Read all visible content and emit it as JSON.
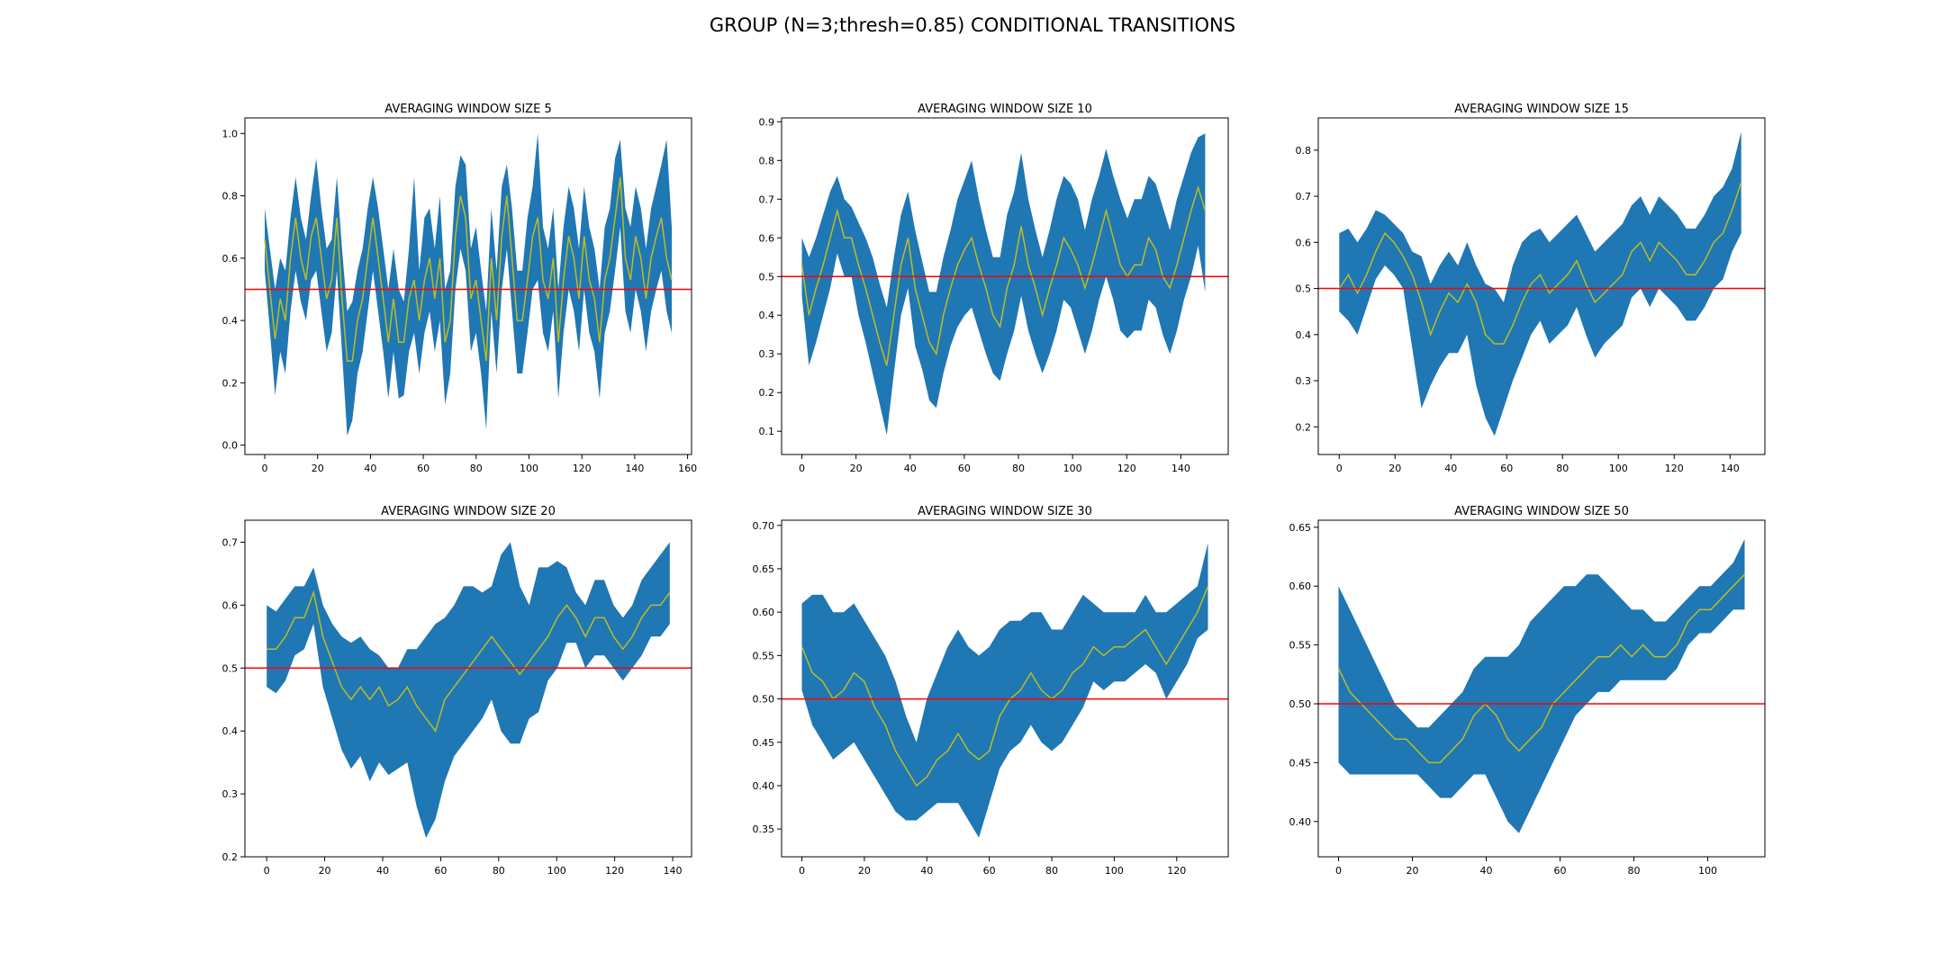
{
  "title": "GROUP (N=3;thresh=0.85) CONDITIONAL TRANSITIONS",
  "colors": {
    "band": "#1f77b4",
    "mean": "#bcbd22",
    "threshold": "#ff0000"
  },
  "chart_data": [
    {
      "type": "area",
      "title": "AVERAGING WINDOW SIZE 5",
      "xlim": [
        -7.5,
        161.5
      ],
      "ylim": [
        -0.03,
        1.05
      ],
      "xticks": [
        0,
        20,
        40,
        60,
        80,
        100,
        120,
        140,
        160
      ],
      "yticks": [
        0.0,
        0.2,
        0.4,
        0.6,
        0.8,
        1.0
      ],
      "threshold": 0.5,
      "x_start": 0,
      "x_end": 154,
      "mean": [
        0.66,
        0.5,
        0.34,
        0.47,
        0.4,
        0.6,
        0.73,
        0.6,
        0.53,
        0.67,
        0.73,
        0.6,
        0.47,
        0.53,
        0.73,
        0.47,
        0.27,
        0.27,
        0.4,
        0.47,
        0.6,
        0.73,
        0.6,
        0.47,
        0.33,
        0.47,
        0.33,
        0.33,
        0.47,
        0.53,
        0.4,
        0.53,
        0.6,
        0.47,
        0.6,
        0.33,
        0.4,
        0.67,
        0.8,
        0.73,
        0.47,
        0.53,
        0.4,
        0.27,
        0.6,
        0.4,
        0.67,
        0.8,
        0.6,
        0.4,
        0.4,
        0.53,
        0.67,
        0.73,
        0.53,
        0.47,
        0.6,
        0.33,
        0.53,
        0.67,
        0.6,
        0.47,
        0.67,
        0.53,
        0.47,
        0.33,
        0.53,
        0.6,
        0.73,
        0.86,
        0.6,
        0.53,
        0.67,
        0.6,
        0.47,
        0.6,
        0.67,
        0.73,
        0.6,
        0.53
      ],
      "upper": [
        0.76,
        0.63,
        0.5,
        0.6,
        0.56,
        0.73,
        0.86,
        0.73,
        0.66,
        0.8,
        0.92,
        0.76,
        0.63,
        0.66,
        0.86,
        0.63,
        0.43,
        0.46,
        0.56,
        0.63,
        0.76,
        0.86,
        0.76,
        0.63,
        0.5,
        0.63,
        0.5,
        0.46,
        0.63,
        0.86,
        0.56,
        0.73,
        0.76,
        0.63,
        0.8,
        0.5,
        0.56,
        0.83,
        0.93,
        0.9,
        0.63,
        0.7,
        0.56,
        0.43,
        0.76,
        0.56,
        0.83,
        0.9,
        0.76,
        0.56,
        0.56,
        0.73,
        0.83,
        1.0,
        0.7,
        0.63,
        0.76,
        0.5,
        0.7,
        0.83,
        0.76,
        0.63,
        0.83,
        0.7,
        0.63,
        0.5,
        0.7,
        0.76,
        0.92,
        0.98,
        0.76,
        0.7,
        0.83,
        0.76,
        0.63,
        0.76,
        0.83,
        0.9,
        0.98,
        0.7
      ],
      "lower": [
        0.56,
        0.37,
        0.16,
        0.3,
        0.23,
        0.43,
        0.56,
        0.46,
        0.4,
        0.53,
        0.56,
        0.43,
        0.3,
        0.36,
        0.56,
        0.3,
        0.03,
        0.08,
        0.23,
        0.3,
        0.43,
        0.56,
        0.43,
        0.3,
        0.15,
        0.3,
        0.15,
        0.16,
        0.3,
        0.36,
        0.23,
        0.36,
        0.43,
        0.3,
        0.4,
        0.13,
        0.23,
        0.5,
        0.63,
        0.56,
        0.3,
        0.36,
        0.23,
        0.05,
        0.43,
        0.23,
        0.5,
        0.63,
        0.43,
        0.23,
        0.23,
        0.36,
        0.5,
        0.53,
        0.36,
        0.3,
        0.43,
        0.15,
        0.36,
        0.5,
        0.43,
        0.3,
        0.5,
        0.36,
        0.3,
        0.15,
        0.36,
        0.43,
        0.56,
        0.7,
        0.43,
        0.36,
        0.5,
        0.43,
        0.3,
        0.43,
        0.5,
        0.56,
        0.43,
        0.36
      ]
    },
    {
      "type": "area",
      "title": "AVERAGING WINDOW SIZE 10",
      "xlim": [
        -7.5,
        157.5
      ],
      "ylim": [
        0.04,
        0.91
      ],
      "xticks": [
        0,
        20,
        40,
        60,
        80,
        100,
        120,
        140
      ],
      "yticks": [
        0.1,
        0.2,
        0.3,
        0.4,
        0.5,
        0.6,
        0.7,
        0.8,
        0.9
      ],
      "threshold": 0.5,
      "x_start": 0,
      "x_end": 149,
      "mean": [
        0.53,
        0.4,
        0.47,
        0.53,
        0.6,
        0.67,
        0.6,
        0.6,
        0.53,
        0.47,
        0.4,
        0.33,
        0.27,
        0.4,
        0.53,
        0.6,
        0.47,
        0.4,
        0.33,
        0.3,
        0.4,
        0.47,
        0.53,
        0.57,
        0.6,
        0.53,
        0.47,
        0.4,
        0.37,
        0.47,
        0.53,
        0.63,
        0.53,
        0.47,
        0.4,
        0.47,
        0.53,
        0.6,
        0.57,
        0.53,
        0.47,
        0.53,
        0.6,
        0.67,
        0.6,
        0.53,
        0.5,
        0.53,
        0.53,
        0.6,
        0.57,
        0.5,
        0.47,
        0.53,
        0.6,
        0.67,
        0.73,
        0.67
      ],
      "upper": [
        0.6,
        0.55,
        0.6,
        0.66,
        0.72,
        0.76,
        0.7,
        0.68,
        0.64,
        0.6,
        0.55,
        0.48,
        0.42,
        0.55,
        0.66,
        0.72,
        0.62,
        0.54,
        0.46,
        0.46,
        0.55,
        0.62,
        0.7,
        0.75,
        0.8,
        0.7,
        0.62,
        0.55,
        0.55,
        0.66,
        0.72,
        0.82,
        0.7,
        0.62,
        0.55,
        0.62,
        0.7,
        0.76,
        0.74,
        0.7,
        0.62,
        0.7,
        0.76,
        0.83,
        0.76,
        0.7,
        0.65,
        0.7,
        0.7,
        0.76,
        0.74,
        0.68,
        0.62,
        0.7,
        0.76,
        0.82,
        0.86,
        0.87
      ],
      "lower": [
        0.45,
        0.27,
        0.33,
        0.4,
        0.47,
        0.56,
        0.5,
        0.5,
        0.4,
        0.33,
        0.25,
        0.17,
        0.09,
        0.25,
        0.4,
        0.47,
        0.32,
        0.26,
        0.18,
        0.16,
        0.25,
        0.32,
        0.37,
        0.4,
        0.42,
        0.36,
        0.3,
        0.25,
        0.23,
        0.3,
        0.36,
        0.45,
        0.36,
        0.3,
        0.25,
        0.3,
        0.36,
        0.44,
        0.42,
        0.36,
        0.3,
        0.36,
        0.44,
        0.5,
        0.44,
        0.36,
        0.34,
        0.36,
        0.36,
        0.44,
        0.42,
        0.35,
        0.3,
        0.36,
        0.44,
        0.5,
        0.58,
        0.46
      ]
    },
    {
      "type": "area",
      "title": "AVERAGING WINDOW SIZE 15",
      "xlim": [
        -7.5,
        152.5
      ],
      "ylim": [
        0.14,
        0.87
      ],
      "xticks": [
        0,
        20,
        40,
        60,
        80,
        100,
        120,
        140
      ],
      "yticks": [
        0.2,
        0.3,
        0.4,
        0.5,
        0.6,
        0.7,
        0.8
      ],
      "threshold": 0.5,
      "x_start": 0,
      "x_end": 144,
      "mean": [
        0.5,
        0.53,
        0.49,
        0.53,
        0.58,
        0.62,
        0.6,
        0.57,
        0.53,
        0.47,
        0.4,
        0.45,
        0.49,
        0.47,
        0.51,
        0.47,
        0.4,
        0.38,
        0.38,
        0.42,
        0.47,
        0.51,
        0.53,
        0.49,
        0.51,
        0.53,
        0.56,
        0.51,
        0.47,
        0.49,
        0.51,
        0.53,
        0.58,
        0.6,
        0.56,
        0.6,
        0.58,
        0.56,
        0.53,
        0.53,
        0.56,
        0.6,
        0.62,
        0.67,
        0.73
      ],
      "upper": [
        0.62,
        0.63,
        0.6,
        0.63,
        0.67,
        0.66,
        0.64,
        0.62,
        0.58,
        0.57,
        0.51,
        0.55,
        0.58,
        0.55,
        0.6,
        0.55,
        0.51,
        0.5,
        0.47,
        0.55,
        0.6,
        0.62,
        0.63,
        0.6,
        0.62,
        0.64,
        0.66,
        0.62,
        0.58,
        0.6,
        0.62,
        0.64,
        0.68,
        0.7,
        0.66,
        0.7,
        0.68,
        0.66,
        0.63,
        0.63,
        0.66,
        0.7,
        0.72,
        0.76,
        0.84
      ],
      "lower": [
        0.45,
        0.43,
        0.4,
        0.46,
        0.52,
        0.55,
        0.53,
        0.5,
        0.37,
        0.24,
        0.29,
        0.33,
        0.36,
        0.36,
        0.4,
        0.29,
        0.22,
        0.18,
        0.24,
        0.3,
        0.35,
        0.4,
        0.43,
        0.38,
        0.4,
        0.42,
        0.46,
        0.4,
        0.35,
        0.38,
        0.4,
        0.42,
        0.48,
        0.5,
        0.46,
        0.5,
        0.48,
        0.46,
        0.43,
        0.43,
        0.46,
        0.5,
        0.52,
        0.58,
        0.62
      ]
    },
    {
      "type": "area",
      "title": "AVERAGING WINDOW SIZE 20",
      "xlim": [
        -7.5,
        146.5
      ],
      "ylim": [
        0.2,
        0.735
      ],
      "xticks": [
        0,
        20,
        40,
        60,
        80,
        100,
        120,
        140
      ],
      "yticks": [
        0.2,
        0.3,
        0.4,
        0.5,
        0.6,
        0.7
      ],
      "threshold": 0.5,
      "x_start": 0,
      "x_end": 139,
      "mean": [
        0.53,
        0.53,
        0.55,
        0.58,
        0.58,
        0.62,
        0.55,
        0.51,
        0.47,
        0.45,
        0.47,
        0.45,
        0.47,
        0.44,
        0.45,
        0.47,
        0.44,
        0.42,
        0.4,
        0.45,
        0.47,
        0.49,
        0.51,
        0.53,
        0.55,
        0.53,
        0.51,
        0.49,
        0.51,
        0.53,
        0.55,
        0.58,
        0.6,
        0.58,
        0.55,
        0.58,
        0.58,
        0.55,
        0.53,
        0.55,
        0.58,
        0.6,
        0.6,
        0.62
      ],
      "upper": [
        0.6,
        0.59,
        0.61,
        0.63,
        0.63,
        0.66,
        0.6,
        0.57,
        0.55,
        0.54,
        0.55,
        0.53,
        0.52,
        0.5,
        0.5,
        0.53,
        0.53,
        0.55,
        0.57,
        0.58,
        0.6,
        0.63,
        0.63,
        0.62,
        0.63,
        0.68,
        0.7,
        0.63,
        0.6,
        0.66,
        0.66,
        0.67,
        0.66,
        0.62,
        0.6,
        0.64,
        0.64,
        0.6,
        0.58,
        0.6,
        0.64,
        0.66,
        0.68,
        0.7
      ],
      "lower": [
        0.47,
        0.46,
        0.48,
        0.52,
        0.53,
        0.57,
        0.47,
        0.42,
        0.37,
        0.34,
        0.36,
        0.32,
        0.35,
        0.33,
        0.34,
        0.35,
        0.28,
        0.23,
        0.26,
        0.32,
        0.36,
        0.38,
        0.4,
        0.42,
        0.45,
        0.4,
        0.38,
        0.38,
        0.42,
        0.43,
        0.48,
        0.5,
        0.54,
        0.54,
        0.5,
        0.52,
        0.52,
        0.5,
        0.48,
        0.5,
        0.52,
        0.55,
        0.55,
        0.57
      ]
    },
    {
      "type": "area",
      "title": "AVERAGING WINDOW SIZE 30",
      "xlim": [
        -6.5,
        136.5
      ],
      "ylim": [
        0.318,
        0.706
      ],
      "xticks": [
        0,
        20,
        40,
        60,
        80,
        100,
        120
      ],
      "yticks": [
        0.35,
        0.4,
        0.45,
        0.5,
        0.55,
        0.6,
        0.65,
        0.7
      ],
      "threshold": 0.5,
      "x_start": 0,
      "x_end": 130,
      "mean": [
        0.56,
        0.53,
        0.52,
        0.5,
        0.51,
        0.53,
        0.52,
        0.49,
        0.47,
        0.44,
        0.42,
        0.4,
        0.41,
        0.43,
        0.44,
        0.46,
        0.44,
        0.43,
        0.44,
        0.48,
        0.5,
        0.51,
        0.53,
        0.51,
        0.5,
        0.51,
        0.53,
        0.54,
        0.56,
        0.55,
        0.56,
        0.56,
        0.57,
        0.58,
        0.56,
        0.54,
        0.56,
        0.58,
        0.6,
        0.63
      ],
      "upper": [
        0.61,
        0.62,
        0.62,
        0.6,
        0.6,
        0.61,
        0.59,
        0.57,
        0.55,
        0.52,
        0.48,
        0.45,
        0.5,
        0.53,
        0.56,
        0.58,
        0.56,
        0.55,
        0.56,
        0.58,
        0.59,
        0.59,
        0.6,
        0.6,
        0.58,
        0.58,
        0.6,
        0.62,
        0.61,
        0.6,
        0.6,
        0.6,
        0.6,
        0.62,
        0.6,
        0.6,
        0.61,
        0.62,
        0.63,
        0.68
      ],
      "lower": [
        0.51,
        0.47,
        0.45,
        0.43,
        0.44,
        0.45,
        0.43,
        0.41,
        0.39,
        0.37,
        0.36,
        0.36,
        0.37,
        0.38,
        0.38,
        0.38,
        0.36,
        0.34,
        0.38,
        0.42,
        0.44,
        0.45,
        0.47,
        0.45,
        0.44,
        0.45,
        0.47,
        0.49,
        0.52,
        0.51,
        0.52,
        0.52,
        0.53,
        0.54,
        0.53,
        0.5,
        0.52,
        0.54,
        0.57,
        0.58
      ]
    },
    {
      "type": "area",
      "title": "AVERAGING WINDOW SIZE 50",
      "xlim": [
        -5.5,
        115.5
      ],
      "ylim": [
        0.37,
        0.656
      ],
      "xticks": [
        0,
        20,
        40,
        60,
        80,
        100
      ],
      "yticks": [
        0.4,
        0.45,
        0.5,
        0.55,
        0.6,
        0.65
      ],
      "threshold": 0.5,
      "x_start": 0,
      "x_end": 110,
      "mean": [
        0.53,
        0.51,
        0.5,
        0.49,
        0.48,
        0.47,
        0.47,
        0.46,
        0.45,
        0.45,
        0.46,
        0.47,
        0.49,
        0.5,
        0.49,
        0.47,
        0.46,
        0.47,
        0.48,
        0.5,
        0.51,
        0.52,
        0.53,
        0.54,
        0.54,
        0.55,
        0.54,
        0.55,
        0.54,
        0.54,
        0.55,
        0.57,
        0.58,
        0.58,
        0.59,
        0.6,
        0.61
      ],
      "upper": [
        0.6,
        0.58,
        0.56,
        0.54,
        0.52,
        0.5,
        0.49,
        0.48,
        0.48,
        0.49,
        0.5,
        0.51,
        0.53,
        0.54,
        0.54,
        0.54,
        0.55,
        0.57,
        0.58,
        0.59,
        0.6,
        0.6,
        0.61,
        0.61,
        0.6,
        0.59,
        0.58,
        0.58,
        0.57,
        0.57,
        0.58,
        0.59,
        0.6,
        0.6,
        0.61,
        0.62,
        0.64
      ],
      "lower": [
        0.45,
        0.44,
        0.44,
        0.44,
        0.44,
        0.44,
        0.44,
        0.44,
        0.43,
        0.42,
        0.42,
        0.43,
        0.44,
        0.44,
        0.42,
        0.4,
        0.39,
        0.41,
        0.43,
        0.45,
        0.47,
        0.49,
        0.5,
        0.51,
        0.51,
        0.52,
        0.52,
        0.52,
        0.52,
        0.52,
        0.53,
        0.55,
        0.56,
        0.56,
        0.57,
        0.58,
        0.58
      ]
    }
  ]
}
